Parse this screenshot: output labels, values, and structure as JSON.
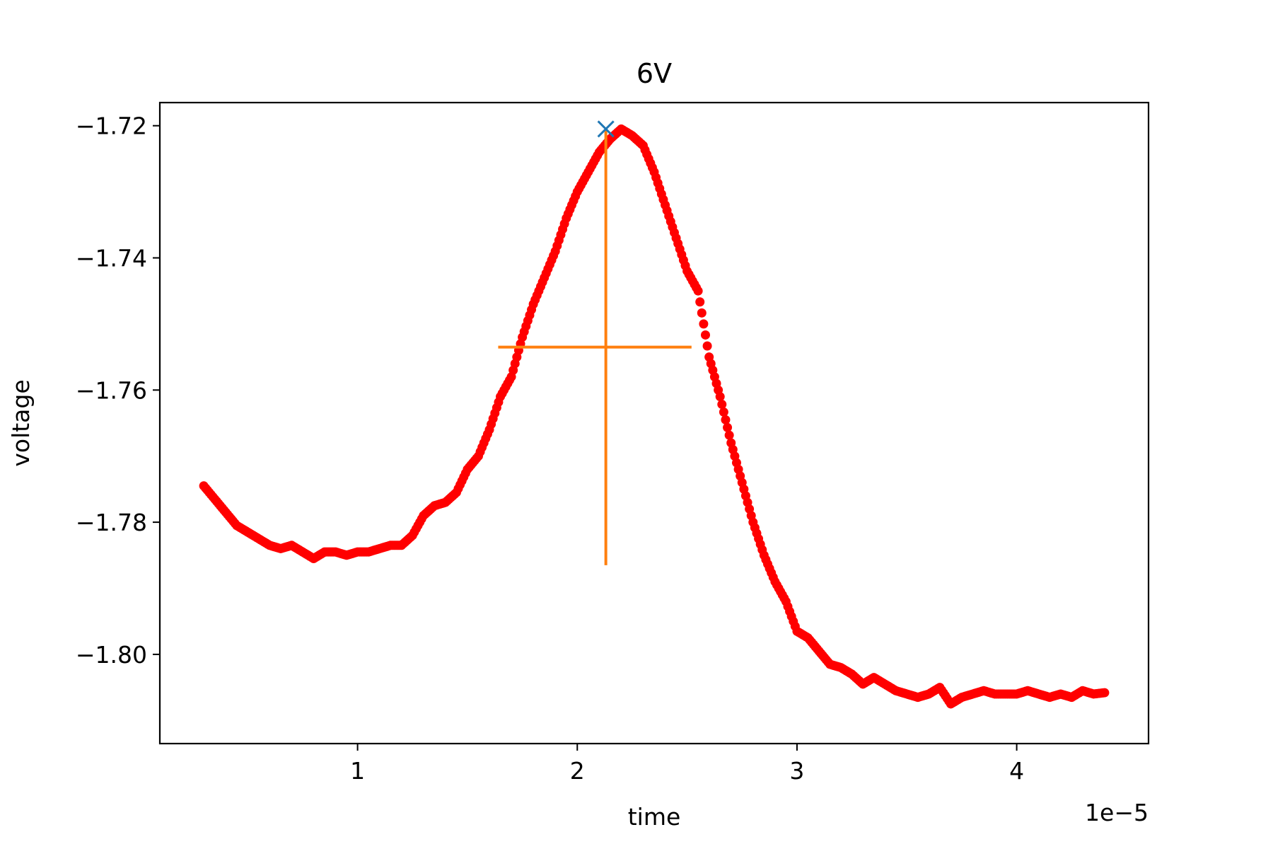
{
  "chart_data": {
    "type": "scatter",
    "title": "6V",
    "xlabel": "time",
    "ylabel": "voltage",
    "x_offset_text": "1e−5",
    "xlim": [
      1e-06,
      4.6e-05
    ],
    "ylim": [
      -1.8135,
      -1.7165
    ],
    "x_ticks": [
      1e-05,
      2e-05,
      3e-05,
      4e-05
    ],
    "x_tick_labels": [
      "1",
      "2",
      "3",
      "4"
    ],
    "y_ticks": [
      -1.72,
      -1.74,
      -1.76,
      -1.78,
      -1.8
    ],
    "y_tick_labels": [
      "−1.72",
      "−1.74",
      "−1.76",
      "−1.78",
      "−1.80"
    ],
    "grid": false,
    "series_color": "#ff0000",
    "series": [
      {
        "x": [
          3e-06,
          3.5e-06,
          4e-06,
          4.5e-06,
          5e-06,
          5.5e-06,
          6e-06,
          6.5e-06,
          7e-06,
          7.5e-06,
          8e-06,
          8.5e-06,
          9e-06,
          9.5e-06,
          1e-05,
          1.05e-05,
          1.1e-05,
          1.15e-05,
          1.2e-05,
          1.25e-05,
          1.3e-05,
          1.35e-05,
          1.4e-05,
          1.45e-05,
          1.5e-05,
          1.55e-05,
          1.6e-05,
          1.65e-05,
          1.7e-05,
          1.75e-05,
          1.8e-05,
          1.85e-05,
          1.9e-05,
          1.95e-05,
          2e-05,
          2.05e-05,
          2.1e-05,
          2.15e-05,
          2.2e-05,
          2.25e-05,
          2.3e-05,
          2.35e-05,
          2.4e-05,
          2.45e-05,
          2.5e-05,
          2.55e-05,
          2.6e-05,
          2.65e-05,
          2.7e-05,
          2.75e-05,
          2.8e-05,
          2.85e-05,
          2.9e-05,
          2.95e-05,
          3e-05,
          3.05e-05,
          3.1e-05,
          3.15e-05,
          3.2e-05,
          3.25e-05,
          3.3e-05,
          3.35e-05,
          3.4e-05,
          3.45e-05,
          3.5e-05,
          3.55e-05,
          3.6e-05,
          3.65e-05,
          3.7e-05,
          3.75e-05,
          3.8e-05,
          3.85e-05,
          3.9e-05,
          3.95e-05,
          4e-05,
          4.05e-05,
          4.1e-05,
          4.15e-05,
          4.2e-05,
          4.25e-05,
          4.3e-05,
          4.35e-05,
          4.4e-05
        ],
        "y": [
          -1.7745,
          -1.7765,
          -1.7785,
          -1.7805,
          -1.7815,
          -1.7825,
          -1.7835,
          -1.784,
          -1.7835,
          -1.7845,
          -1.7855,
          -1.7845,
          -1.7845,
          -1.785,
          -1.7845,
          -1.7845,
          -1.784,
          -1.7835,
          -1.7835,
          -1.782,
          -1.779,
          -1.7775,
          -1.777,
          -1.7755,
          -1.772,
          -1.77,
          -1.766,
          -1.761,
          -1.758,
          -1.752,
          -1.747,
          -1.743,
          -1.739,
          -1.734,
          -1.73,
          -1.727,
          -1.724,
          -1.722,
          -1.7205,
          -1.7215,
          -1.723,
          -1.727,
          -1.732,
          -1.737,
          -1.742,
          -1.745,
          -1.755,
          -1.761,
          -1.768,
          -1.774,
          -1.78,
          -1.785,
          -1.789,
          -1.792,
          -1.7965,
          -1.7975,
          -1.7995,
          -1.8015,
          -1.802,
          -1.803,
          -1.8045,
          -1.8035,
          -1.8045,
          -1.8055,
          -1.806,
          -1.8065,
          -1.806,
          -1.805,
          -1.8075,
          -1.8065,
          -1.806,
          -1.8055,
          -1.806,
          -1.806,
          -1.806,
          -1.8055,
          -1.806,
          -1.8065,
          -1.806,
          -1.8065,
          -1.8055,
          -1.806,
          -1.8058
        ]
      }
    ],
    "peak": {
      "x": 2.13e-05,
      "y": -1.7205,
      "color": "#1f77b4"
    },
    "crosshair": {
      "color": "#ff7f0e",
      "vertical": {
        "x": 2.13e-05,
        "y_from": -1.7865,
        "y_to": -1.7205
      },
      "horizontal": {
        "y": -1.7535,
        "x_from": 1.64e-05,
        "x_to": 2.52e-05
      }
    }
  }
}
